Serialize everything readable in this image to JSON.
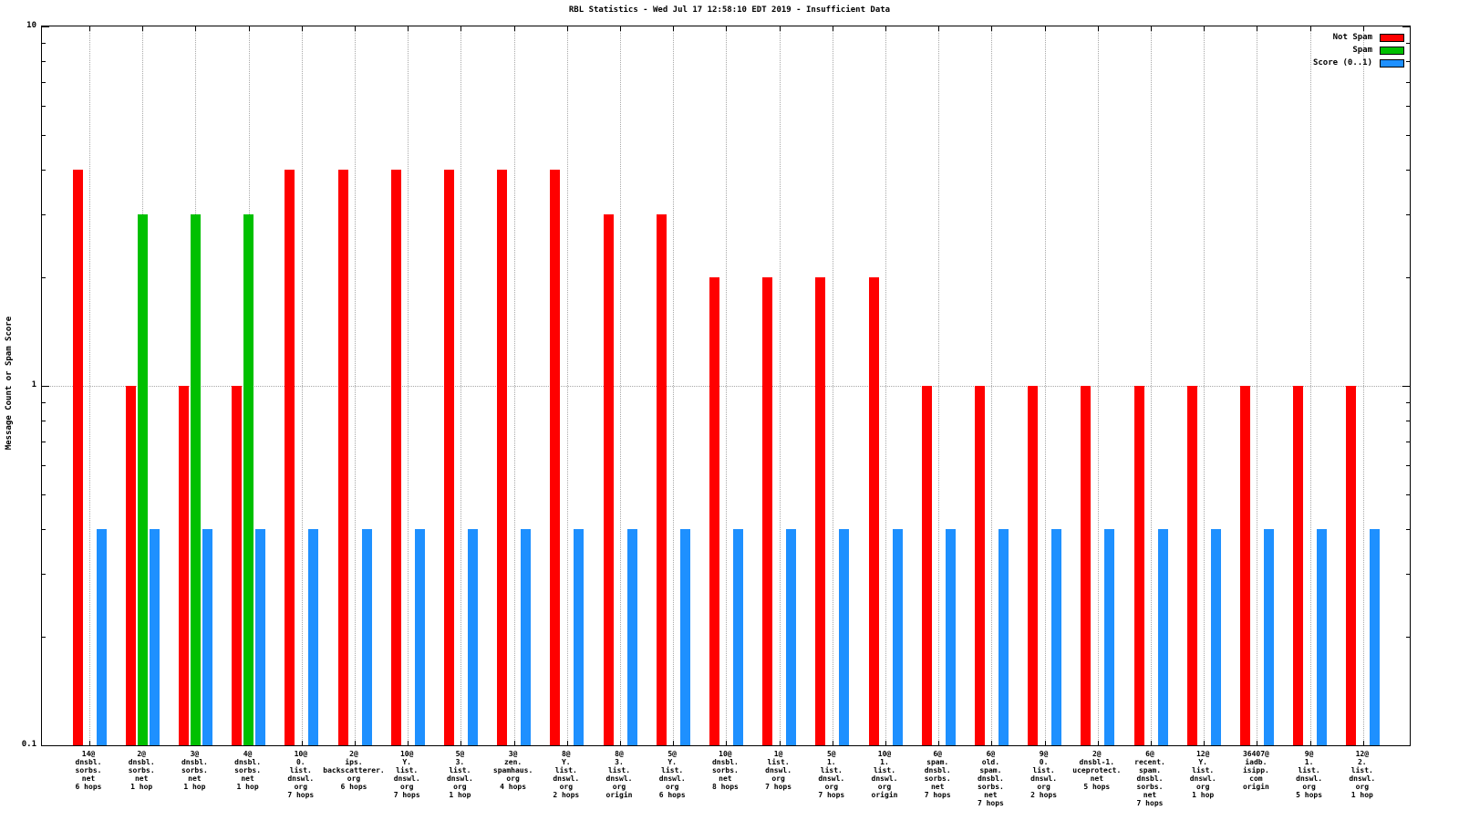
{
  "chart_data": {
    "type": "bar",
    "scale": "log-y",
    "title": "RBL Statistics - Wed Jul 17 12:58:10 EDT 2019 - Insufficient Data",
    "ylabel": "Message Count or Spam Score",
    "ylim": [
      0.1,
      10
    ],
    "grid": true,
    "legend_position": "top-right",
    "y_ticks": [
      {
        "label": "10",
        "value": 10
      },
      {
        "label": "1",
        "value": 1
      },
      {
        "label": "0.1",
        "value": 0.1
      }
    ],
    "categories": [
      [
        "14@",
        "dnsbl.",
        "sorbs.",
        "net",
        "6 hops"
      ],
      [
        "2@",
        "dnsbl.",
        "sorbs.",
        "net",
        "1 hop"
      ],
      [
        "3@",
        "dnsbl.",
        "sorbs.",
        "net",
        "1 hop"
      ],
      [
        "4@",
        "dnsbl.",
        "sorbs.",
        "net",
        "1 hop"
      ],
      [
        "10@",
        "0.",
        "list.",
        "dnswl.",
        "org",
        "7 hops"
      ],
      [
        "2@",
        "ips.",
        "backscatterer.",
        "org",
        "6 hops"
      ],
      [
        "10@",
        "Y.",
        "list.",
        "dnswl.",
        "org",
        "7 hops"
      ],
      [
        "5@",
        "3.",
        "list.",
        "dnswl.",
        "org",
        "1 hop"
      ],
      [
        "3@",
        "zen.",
        "spamhaus.",
        "org",
        "4 hops"
      ],
      [
        "8@",
        "Y.",
        "list.",
        "dnswl.",
        "org",
        "2 hops"
      ],
      [
        "8@",
        "3.",
        "list.",
        "dnswl.",
        "org",
        "origin"
      ],
      [
        "5@",
        "Y.",
        "list.",
        "dnswl.",
        "org",
        "6 hops"
      ],
      [
        "10@",
        "dnsbl.",
        "sorbs.",
        "net",
        "8 hops"
      ],
      [
        "1@",
        "list.",
        "dnswl.",
        "org",
        "7 hops"
      ],
      [
        "5@",
        "1.",
        "list.",
        "dnswl.",
        "org",
        "7 hops"
      ],
      [
        "10@",
        "1.",
        "list.",
        "dnswl.",
        "org",
        "origin"
      ],
      [
        "6@",
        "spam.",
        "dnsbl.",
        "sorbs.",
        "net",
        "7 hops"
      ],
      [
        "6@",
        "old.",
        "spam.",
        "dnsbl.",
        "sorbs.",
        "net",
        "7 hops"
      ],
      [
        "9@",
        "0.",
        "list.",
        "dnswl.",
        "org",
        "2 hops"
      ],
      [
        "2@",
        "dnsbl-1.",
        "uceprotect.",
        "net",
        "5 hops"
      ],
      [
        "6@",
        "recent.",
        "spam.",
        "dnsbl.",
        "sorbs.",
        "net",
        "7 hops"
      ],
      [
        "12@",
        "Y.",
        "list.",
        "dnswl.",
        "org",
        "1 hop"
      ],
      [
        "36407@",
        "iadb.",
        "isipp.",
        "com",
        "origin"
      ],
      [
        "9@",
        "1.",
        "list.",
        "dnswl.",
        "org",
        "5 hops"
      ],
      [
        "12@",
        "2.",
        "list.",
        "dnswl.",
        "org",
        "1 hop"
      ]
    ],
    "series": [
      {
        "name": "Not Spam",
        "color": "#ff0000",
        "values": [
          4,
          1,
          1,
          1,
          4,
          4,
          4,
          4,
          4,
          4,
          3,
          3,
          2,
          2,
          2,
          2,
          1,
          1,
          1,
          1,
          1,
          1,
          1,
          1,
          1
        ]
      },
      {
        "name": "Spam",
        "color": "#00c000",
        "values": [
          0,
          3,
          3,
          3,
          0,
          0,
          0,
          0,
          0,
          0,
          0,
          0,
          0,
          0,
          0,
          0,
          0,
          0,
          0,
          0,
          0,
          0,
          0,
          0,
          0
        ]
      },
      {
        "name": "Score (0..1)",
        "color": "#1e90ff",
        "values": [
          0.4,
          0.4,
          0.4,
          0.4,
          0.4,
          0.4,
          0.4,
          0.4,
          0.4,
          0.4,
          0.4,
          0.4,
          0.4,
          0.4,
          0.4,
          0.4,
          0.4,
          0.4,
          0.4,
          0.4,
          0.4,
          0.4,
          0.4,
          0.4,
          0.4
        ]
      }
    ]
  }
}
